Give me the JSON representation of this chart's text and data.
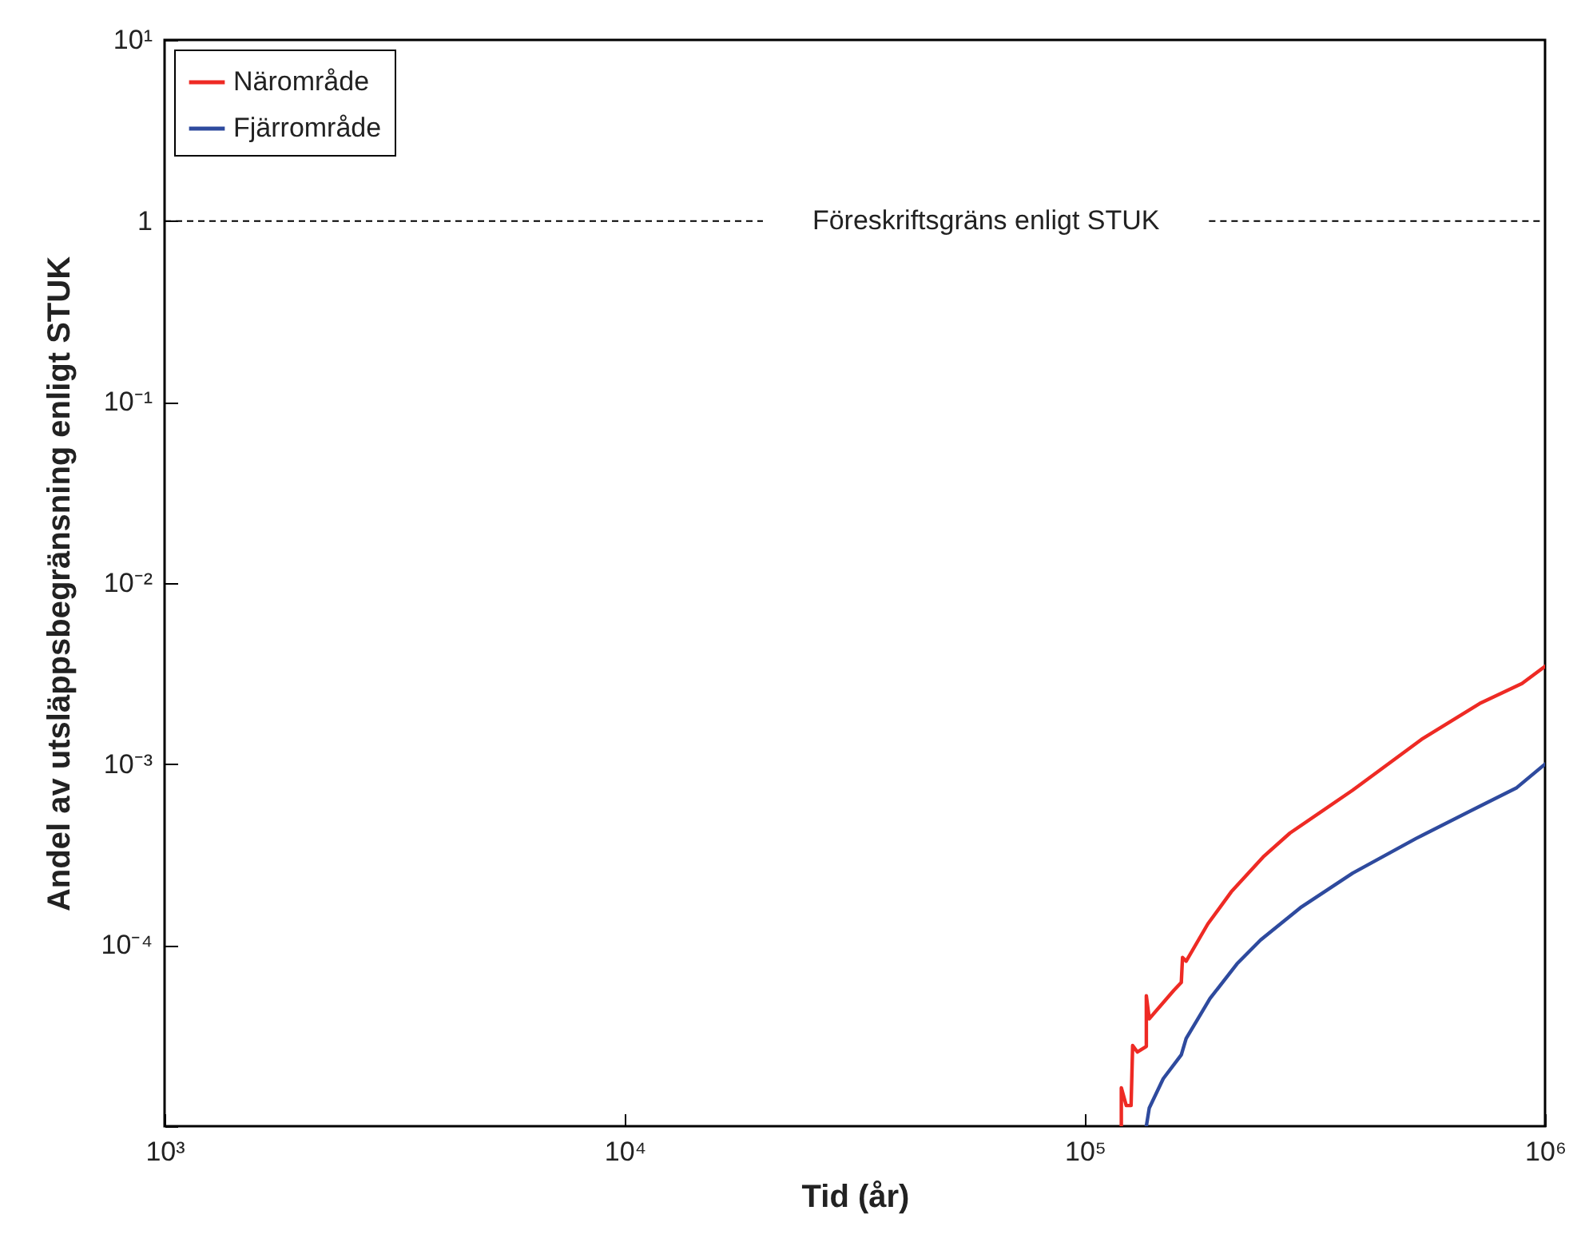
{
  "chart_data": {
    "type": "line",
    "xlabel": "Tid (år)",
    "ylabel": "Andel av utsläppsbegränsning enligt STUK",
    "log": "xy",
    "grid": false,
    "legend": "top left",
    "marker": "none",
    "line_style": "solid",
    "xlim": [
      1000,
      1000000
    ],
    "xticks": [
      {
        "value": 1000,
        "label": "10³"
      },
      {
        "value": 10000,
        "label": "10⁴"
      },
      {
        "value": 100000,
        "label": "10⁵"
      },
      {
        "value": 1000000,
        "label": "10⁶"
      }
    ],
    "ylim": [
      1e-05,
      10
    ],
    "yticks": [
      {
        "value": 1e-05,
        "label": null
      },
      {
        "value": 0.0001,
        "label": "10⁻⁴"
      },
      {
        "value": 0.001,
        "label": "10⁻³"
      },
      {
        "value": 0.01,
        "label": "10⁻²"
      },
      {
        "value": 0.1,
        "label": "10⁻¹"
      },
      {
        "value": 1,
        "label": "1"
      },
      {
        "value": 10,
        "label": "10¹"
      }
    ],
    "ref_lines": [
      {
        "axis": "y",
        "value": 1,
        "label": "Föreskriftsgräns enligt STUK",
        "color": "#000000",
        "line_style": "dashed"
      }
    ],
    "series": [
      {
        "name": "Närområde",
        "color": "#ee2a24",
        "x": [
          120000,
          120000,
          123000,
          126000,
          127000,
          130000,
          136000,
          136000,
          138000,
          156000,
          162000,
          163000,
          166000,
          185000,
          208000,
          244000,
          279000,
          382000,
          539000,
          721000,
          891000,
          1000000
        ],
        "values": [
          1e-05,
          1.63e-05,
          1.3e-05,
          1.3e-05,
          2.79e-05,
          2.57e-05,
          2.76e-05,
          5.25e-05,
          3.92e-05,
          5.62e-05,
          6.22e-05,
          8.55e-05,
          8.16e-05,
          0.000131,
          0.000197,
          0.000307,
          0.000416,
          0.000718,
          0.00137,
          0.00216,
          0.00279,
          0.00347
        ]
      },
      {
        "name": "Fjärrområde",
        "color": "#2e4a9e",
        "x": [
          136000,
          138000,
          148000,
          162000,
          166000,
          187000,
          214000,
          241000,
          294000,
          382000,
          525000,
          721000,
          868000,
          1000000
        ],
        "values": [
          1e-05,
          1.26e-05,
          1.83e-05,
          2.48e-05,
          3.05e-05,
          5.07e-05,
          7.88e-05,
          0.000107,
          0.000161,
          0.00025,
          0.000389,
          0.000585,
          0.000741,
          0.001
        ]
      }
    ]
  }
}
